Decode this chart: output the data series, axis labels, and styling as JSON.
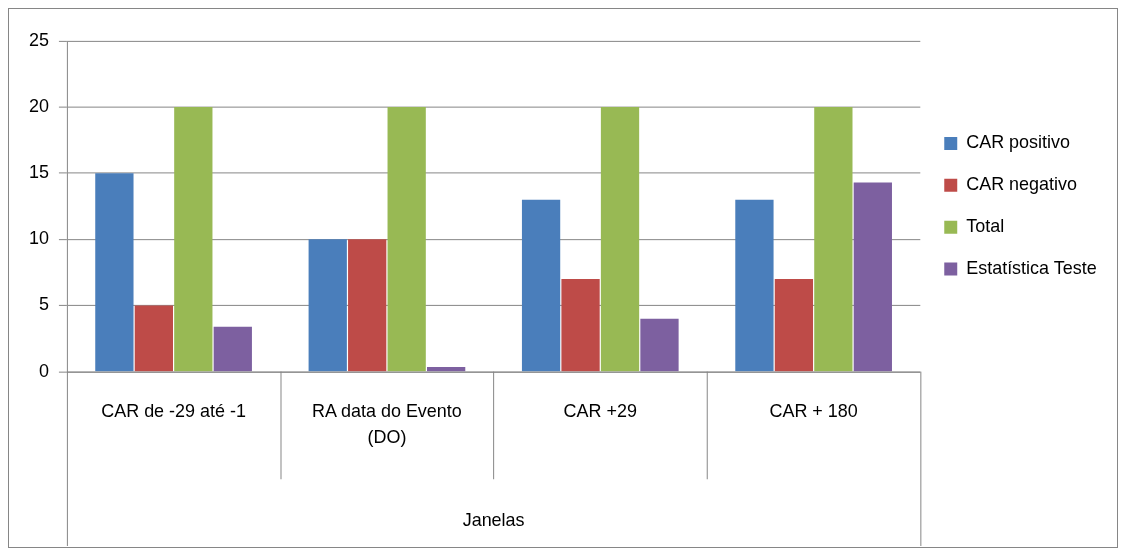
{
  "chart_data": {
    "type": "bar",
    "xlabel": "Janelas",
    "categories": [
      "CAR de -29 até -1",
      "RA data do Evento (DO)",
      "CAR +29",
      "CAR + 180"
    ],
    "series": [
      {
        "name": "CAR positivo",
        "color": "#4a7ebb",
        "values": [
          15,
          10,
          13,
          13
        ]
      },
      {
        "name": "CAR negativo",
        "color": "#be4b48",
        "values": [
          5,
          10,
          7,
          7
        ]
      },
      {
        "name": "Total",
        "color": "#98b954",
        "values": [
          20,
          20,
          20,
          20
        ]
      },
      {
        "name": "Estatística Teste",
        "color": "#7d60a0",
        "values": [
          3.4,
          0.35,
          4.0,
          14.3
        ]
      }
    ],
    "ylim": [
      0,
      25
    ],
    "yticks": [
      0,
      5,
      10,
      15,
      20,
      25
    ],
    "grid": "y",
    "legend": "right"
  }
}
